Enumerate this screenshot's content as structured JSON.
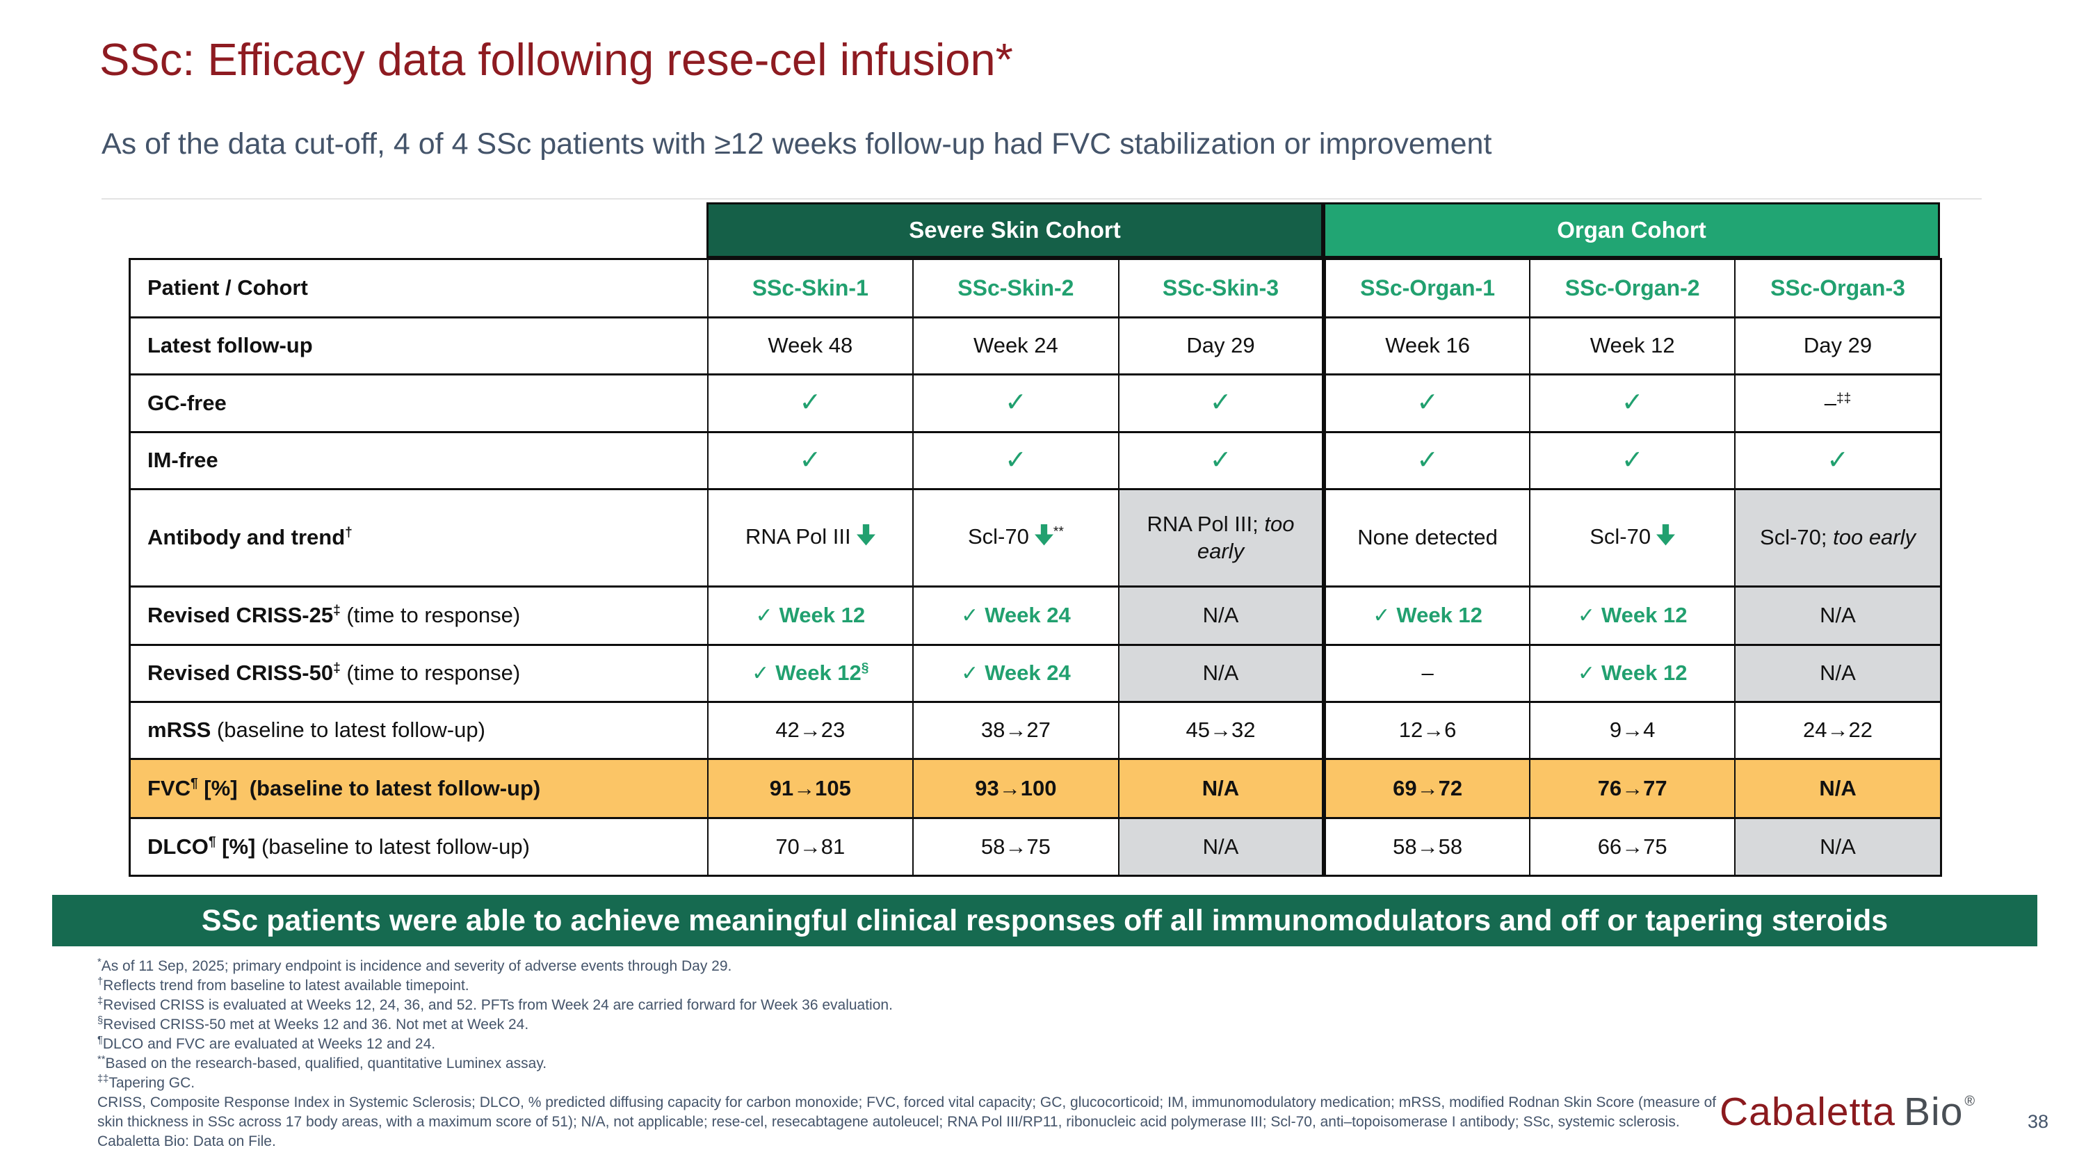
{
  "slide": {
    "title": "SSc: Efficacy data following rese-cel infusion*",
    "subtitle": "As of the data cut-off, 4 of 4 SSc patients with ≥12 weeks follow-up had FVC stabilization or improvement",
    "banner": "SSc patients were able to achieve meaningful clinical responses off all immunomodulators and off or tapering steroids",
    "page_number": "38"
  },
  "colors": {
    "title_maroon": "#8E1B21",
    "slate_text": "#44546A",
    "severe_skin_header_green": "#156048",
    "organ_header_green": "#21A573",
    "accent_green_text": "#21A06F",
    "fvc_row_orange": "#FBC566",
    "na_cell_gray": "#D7D9DB",
    "banner_green": "#166A50"
  },
  "logo": {
    "brand": "Cabaletta",
    "suffix": "Bio",
    "registered": "®"
  },
  "table": {
    "groups": [
      {
        "label": "Severe Skin Cohort"
      },
      {
        "label": "Organ Cohort"
      }
    ],
    "columns": [
      "SSc-Skin-1",
      "SSc-Skin-2",
      "SSc-Skin-3",
      "SSc-Organ-1",
      "SSc-Organ-2",
      "SSc-Organ-3"
    ],
    "rows": [
      {
        "h": 84,
        "type": "columns",
        "label": [
          {
            "text": "Patient / Cohort",
            "bold": true
          }
        ]
      },
      {
        "h": 82,
        "label": [
          {
            "text": "Latest follow-up",
            "bold": true
          }
        ],
        "cells": [
          {
            "text": "Week 48"
          },
          {
            "text": "Week 24"
          },
          {
            "text": "Day 29"
          },
          {
            "text": "Week 16"
          },
          {
            "text": "Week 12"
          },
          {
            "text": "Day 29"
          }
        ]
      },
      {
        "h": 83,
        "label": [
          {
            "text": "GC-free",
            "bold": true
          }
        ],
        "cells": [
          {
            "check": true
          },
          {
            "check": true
          },
          {
            "check": true
          },
          {
            "check": true
          },
          {
            "check": true
          },
          {
            "text": "–",
            "sup": "‡‡"
          }
        ]
      },
      {
        "h": 82,
        "label": [
          {
            "text": "IM-free",
            "bold": true
          }
        ],
        "cells": [
          {
            "check": true
          },
          {
            "check": true
          },
          {
            "check": true
          },
          {
            "check": true
          },
          {
            "check": true
          },
          {
            "check": true
          }
        ]
      },
      {
        "h": 140,
        "label": [
          {
            "text": "Antibody and trend",
            "bold": true
          },
          {
            "text": "†",
            "bold": true,
            "sup": true
          }
        ],
        "cells": [
          {
            "text": "RNA Pol III",
            "arrow": "down"
          },
          {
            "text": "Scl-70",
            "arrow": "down",
            "sup": "**"
          },
          {
            "text": "RNA Pol III;",
            "italic": "too early",
            "bg": "gray"
          },
          {
            "text": "None detected"
          },
          {
            "text": "Scl-70",
            "arrow": "down"
          },
          {
            "text": "Scl-70;",
            "italic": "too early",
            "bg": "gray"
          }
        ]
      },
      {
        "h": 84,
        "label": [
          {
            "text": "Revised CRISS-25",
            "bold": true
          },
          {
            "text": "‡",
            "bold": true,
            "sup": true
          },
          {
            "text": " (time to response)"
          }
        ],
        "cells": [
          {
            "check": true,
            "text": "Week 12",
            "green": true
          },
          {
            "check": true,
            "text": "Week 24",
            "green": true
          },
          {
            "text": "N/A",
            "bg": "gray"
          },
          {
            "check": true,
            "text": "Week 12",
            "green": true
          },
          {
            "check": true,
            "text": "Week 12",
            "green": true
          },
          {
            "text": "N/A",
            "bg": "gray"
          }
        ]
      },
      {
        "h": 82,
        "label": [
          {
            "text": "Revised CRISS-50",
            "bold": true
          },
          {
            "text": "‡",
            "bold": true,
            "sup": true
          },
          {
            "text": " (time to response)"
          }
        ],
        "cells": [
          {
            "check": true,
            "text": "Week 12",
            "green": true,
            "sup": "§"
          },
          {
            "check": true,
            "text": "Week 24",
            "green": true
          },
          {
            "text": "N/A",
            "bg": "gray"
          },
          {
            "text": "–"
          },
          {
            "check": true,
            "text": "Week 12",
            "green": true
          },
          {
            "text": "N/A",
            "bg": "gray"
          }
        ]
      },
      {
        "h": 82,
        "label": [
          {
            "text": "mRSS",
            "bold": true
          },
          {
            "text": " (baseline to latest follow-up)"
          }
        ],
        "cells": [
          {
            "text": "42→23"
          },
          {
            "text": "38→27"
          },
          {
            "text": "45→32"
          },
          {
            "text": "12→6"
          },
          {
            "text": "9→4"
          },
          {
            "text": "24→22"
          }
        ]
      },
      {
        "h": 85,
        "band": "orange",
        "label": [
          {
            "text": "FVC",
            "bold": true
          },
          {
            "text": "¶",
            "bold": true,
            "sup": true
          },
          {
            "text": " [%]  (baseline to latest follow-up)",
            "bold": true
          }
        ],
        "cells": [
          {
            "text": "91→105"
          },
          {
            "text": "93→100"
          },
          {
            "text": "N/A"
          },
          {
            "text": "69→72"
          },
          {
            "text": "76→77"
          },
          {
            "text": "N/A"
          }
        ]
      },
      {
        "h": 83,
        "label": [
          {
            "text": "DLCO",
            "bold": true
          },
          {
            "text": "¶",
            "bold": true,
            "sup": true
          },
          {
            "text": " [%]",
            "bold": true
          },
          {
            "text": " (baseline to latest follow-up)"
          }
        ],
        "cells": [
          {
            "text": "70→81"
          },
          {
            "text": "58→75"
          },
          {
            "text": "N/A",
            "bg": "gray"
          },
          {
            "text": "58→58"
          },
          {
            "text": "66→75"
          },
          {
            "text": "N/A",
            "bg": "gray"
          }
        ]
      }
    ]
  },
  "footnotes": [
    {
      "marker": "*",
      "text": "As of 11 Sep, 2025; primary endpoint is incidence and severity of adverse events through Day 29."
    },
    {
      "marker": "†",
      "text": "Reflects trend from baseline to latest available timepoint."
    },
    {
      "marker": "‡",
      "text": "Revised CRISS is evaluated at Weeks 12, 24, 36, and 52. PFTs from Week 24 are carried forward for Week 36 evaluation."
    },
    {
      "marker": "§",
      "text": "Revised CRISS-50 met at Weeks 12 and 36. Not met at Week 24."
    },
    {
      "marker": "¶",
      "text": "DLCO and FVC are evaluated at Weeks 12 and 24."
    },
    {
      "marker": "**",
      "text": "Based on the research-based, qualified, quantitative Luminex assay."
    },
    {
      "marker": "‡‡",
      "text": "Tapering GC."
    },
    {
      "marker": "",
      "text": "CRISS, Composite Response Index in Systemic Sclerosis; DLCO, % predicted diffusing capacity for carbon monoxide; FVC, forced vital capacity; GC, glucocorticoid; IM, immunomodulatory medication; mRSS, modified Rodnan Skin Score (measure of skin thickness in SSc across 17 body areas, with a maximum score of 51); N/A, not applicable; rese-cel, resecabtagene autoleucel; RNA Pol III/RP11, ribonucleic acid polymerase III; Scl-70, anti–topoisomerase I antibody; SSc, systemic sclerosis."
    },
    {
      "marker": "",
      "text": "Cabaletta Bio: Data on File."
    }
  ]
}
